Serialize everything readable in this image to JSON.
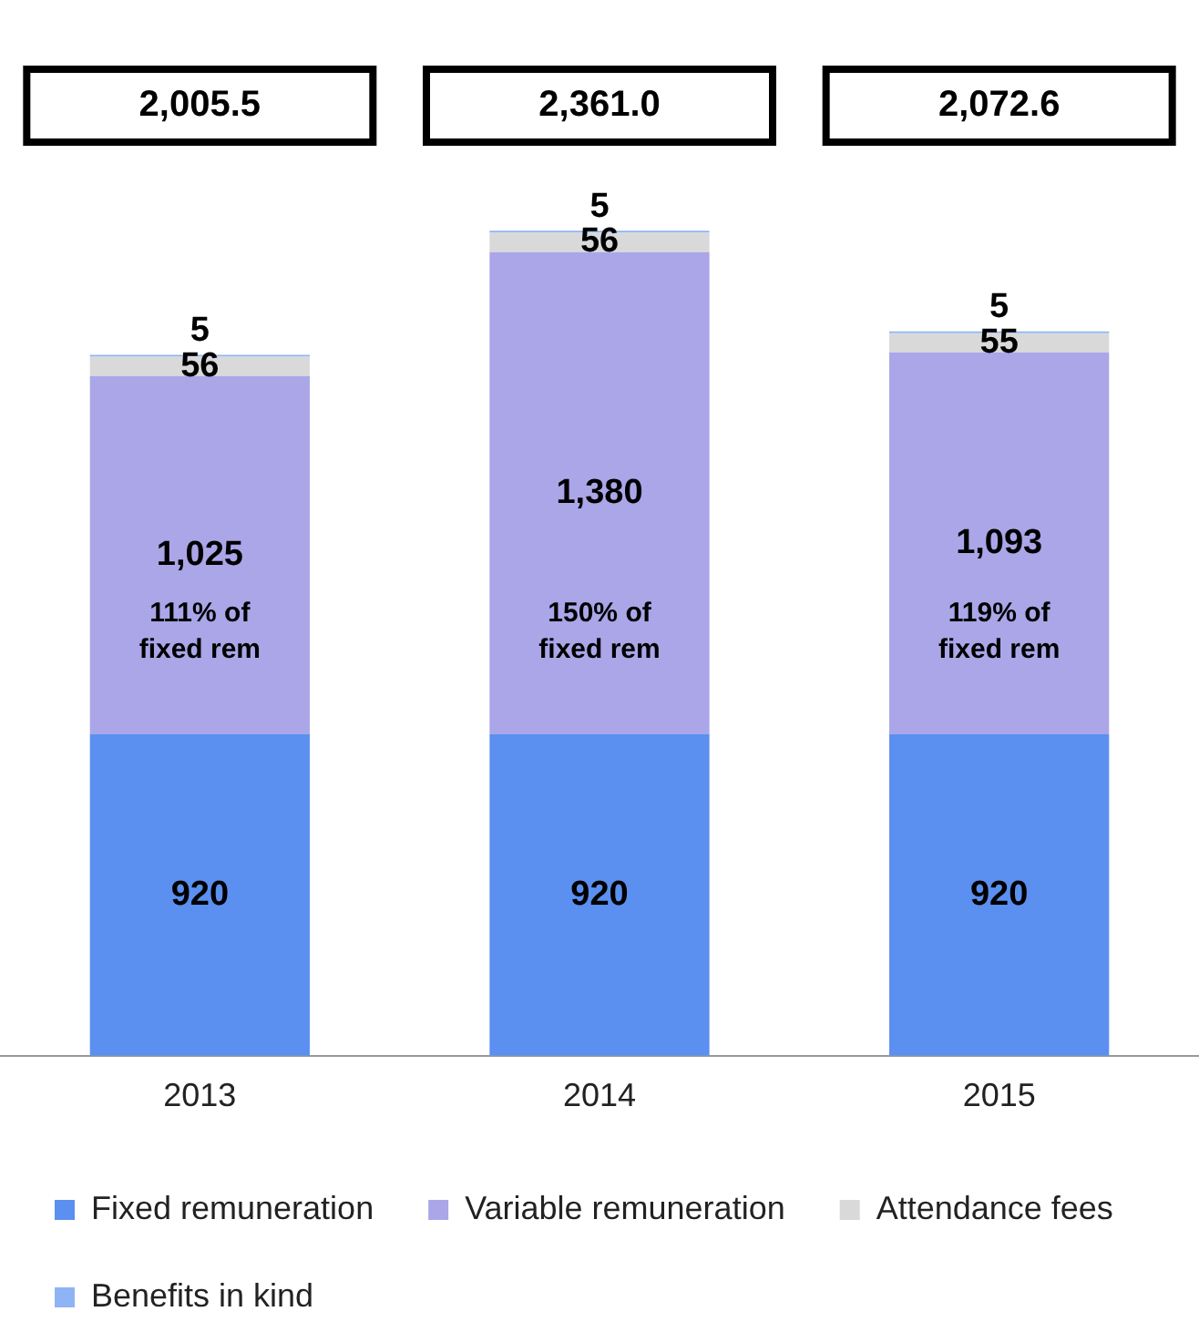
{
  "chart_data": {
    "type": "bar",
    "stacked": true,
    "categories": [
      "2013",
      "2014",
      "2015"
    ],
    "series": [
      {
        "name": "Fixed remuneration",
        "color": "#5b8ff0",
        "values": [
          920,
          920,
          920
        ]
      },
      {
        "name": "Variable remuneration",
        "color": "#aaa6e8",
        "values": [
          1025,
          1380,
          1093
        ],
        "value_labels": [
          "1,025",
          "1,380",
          "1,093"
        ]
      },
      {
        "name": "Attendance fees",
        "color": "#d9d9d9",
        "values": [
          56,
          56,
          55
        ]
      },
      {
        "name": "Benefits in kind",
        "color": "#8fb4f5",
        "values": [
          5,
          5,
          5
        ]
      }
    ],
    "data_labels": true,
    "annotations": [
      "2,005.5",
      "2,361.0",
      "2,072.6",
      "111% of fixed rem",
      "150% of fixed rem",
      "119% of fixed rem"
    ],
    "legend": "bottom",
    "grid": false
  }
}
